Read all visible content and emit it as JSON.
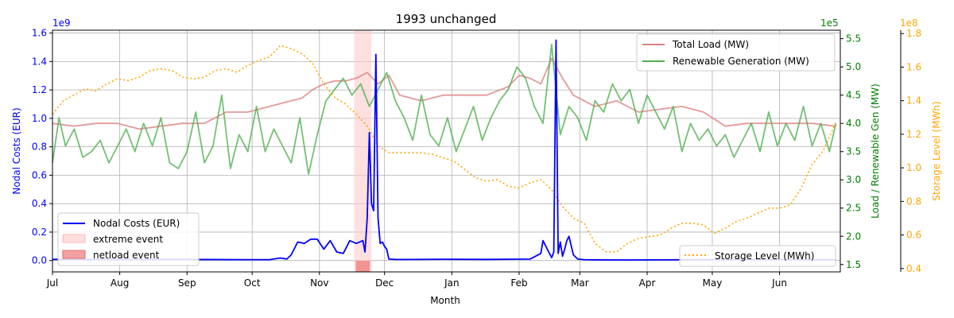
{
  "chart_data": {
    "type": "line",
    "title": "1993 unchanged",
    "xlabel": "Month",
    "x_ticks": [
      "Jul",
      "Aug",
      "Sep",
      "Oct",
      "Nov",
      "Dec",
      "Jan",
      "Feb",
      "Mar",
      "Apr",
      "May",
      "Jun"
    ],
    "grid": true,
    "axes": {
      "left": {
        "label": "Nodal Costs (EUR)",
        "multiplier": "1e9",
        "ylim": [
          -0.08,
          1.62
        ],
        "ticks": [
          "0.0",
          "0.2",
          "0.4",
          "0.6",
          "0.8",
          "1.0",
          "1.2",
          "1.4",
          "1.6"
        ],
        "color": "#0000ff"
      },
      "right1": {
        "label": "Load / Renewable Gen (MW)",
        "multiplier": "1e5",
        "ylim": [
          1.37,
          5.65
        ],
        "ticks": [
          "1.5",
          "2.0",
          "2.5",
          "3.0",
          "3.5",
          "4.0",
          "4.5",
          "5.0",
          "5.5"
        ],
        "color": "#008000"
      },
      "right2": {
        "label": "Storage Level (MWh)",
        "multiplier": "1e8",
        "ylim": [
          0.38,
          1.82
        ],
        "ticks": [
          "0.4",
          "0.6",
          "0.8",
          "1.0",
          "1.2",
          "1.4",
          "1.6",
          "1.8"
        ],
        "color": "#ffa500"
      }
    },
    "legends": {
      "top_right": [
        "Total Load (MW)",
        "Renewable Generation (MW)"
      ],
      "bottom_left": [
        "Nodal Costs (EUR)",
        "extreme event",
        "netload event"
      ],
      "bottom_right": [
        "Storage Level (MWh)"
      ]
    },
    "series": [
      {
        "name": "Nodal Costs (EUR)",
        "axis": "left",
        "color": "#0000ff",
        "style": "solid",
        "x": [
          0,
          30,
          60,
          90,
          100,
          105,
          108,
          110,
          113,
          116,
          119,
          122,
          125,
          128,
          131,
          134,
          137,
          140,
          143,
          144,
          145,
          146,
          147,
          148,
          149,
          150,
          151,
          152,
          153,
          154,
          155,
          158,
          165,
          180,
          200,
          220,
          225,
          226,
          228,
          230,
          231,
          232,
          233,
          234,
          235,
          236,
          237,
          238,
          240,
          242,
          245,
          250,
          265,
          300,
          345,
          361
        ],
        "y": [
          0.008,
          0.007,
          0.007,
          0.006,
          0.006,
          0.018,
          0.01,
          0.04,
          0.13,
          0.12,
          0.15,
          0.15,
          0.08,
          0.14,
          0.06,
          0.05,
          0.14,
          0.12,
          0.14,
          0.06,
          0.3,
          0.9,
          0.4,
          0.35,
          1.45,
          0.3,
          0.12,
          0.13,
          0.1,
          0.08,
          0.01,
          0.007,
          0.007,
          0.009,
          0.008,
          0.01,
          0.05,
          0.14,
          0.08,
          0.02,
          0.06,
          1.55,
          0.05,
          0.13,
          0.03,
          0.08,
          0.14,
          0.17,
          0.04,
          0.01,
          0.006,
          0.005,
          0.004,
          0.006,
          0.006,
          0.006
        ]
      },
      {
        "name": "Storage Level (MWh)",
        "axis": "right2",
        "color": "#ffa500",
        "style": "dotted",
        "x": [
          0,
          5,
          15,
          20,
          25,
          30,
          35,
          40,
          45,
          50,
          55,
          60,
          65,
          70,
          75,
          80,
          85,
          90,
          95,
          100,
          105,
          110,
          115,
          120,
          125,
          130,
          135,
          140,
          145,
          150,
          155,
          160,
          165,
          170,
          175,
          180,
          185,
          190,
          195,
          200,
          205,
          210,
          215,
          220,
          225,
          230,
          235,
          240,
          245,
          250,
          255,
          260,
          265,
          270,
          275,
          280,
          285,
          290,
          295,
          300,
          305,
          310,
          315,
          320,
          325,
          330,
          335,
          340,
          345,
          350,
          355,
          361
        ],
        "y": [
          1.32,
          1.4,
          1.47,
          1.46,
          1.5,
          1.53,
          1.52,
          1.54,
          1.58,
          1.59,
          1.58,
          1.54,
          1.53,
          1.54,
          1.58,
          1.59,
          1.57,
          1.61,
          1.64,
          1.66,
          1.73,
          1.71,
          1.68,
          1.62,
          1.5,
          1.42,
          1.38,
          1.32,
          1.25,
          1.13,
          1.09,
          1.09,
          1.09,
          1.09,
          1.08,
          1.06,
          1.04,
          0.99,
          0.94,
          0.92,
          0.93,
          0.89,
          0.88,
          0.91,
          0.93,
          0.87,
          0.77,
          0.7,
          0.67,
          0.55,
          0.5,
          0.5,
          0.55,
          0.58,
          0.59,
          0.6,
          0.64,
          0.67,
          0.67,
          0.66,
          0.61,
          0.64,
          0.68,
          0.7,
          0.73,
          0.76,
          0.76,
          0.78,
          0.88,
          1.02,
          1.1,
          1.27
        ]
      },
      {
        "name": "Total Load (MW)",
        "axis": "right1",
        "color": "#e08080",
        "style": "solid",
        "x": [
          0,
          10,
          20,
          30,
          40,
          50,
          60,
          70,
          80,
          90,
          100,
          110,
          115,
          120,
          125,
          130,
          135,
          140,
          145,
          150,
          155,
          160,
          170,
          180,
          190,
          200,
          210,
          215,
          220,
          225,
          230,
          235,
          240,
          250,
          260,
          270,
          280,
          290,
          300,
          310,
          320,
          330,
          340,
          350,
          361
        ],
        "y": [
          4.0,
          3.95,
          4.0,
          4.0,
          3.9,
          3.95,
          4.0,
          4.0,
          4.2,
          4.2,
          4.3,
          4.4,
          4.45,
          4.6,
          4.7,
          4.75,
          4.75,
          4.8,
          4.9,
          4.7,
          4.85,
          4.5,
          4.4,
          4.5,
          4.5,
          4.5,
          4.65,
          4.85,
          4.8,
          4.7,
          5.15,
          4.8,
          4.5,
          4.3,
          4.4,
          4.2,
          4.25,
          4.3,
          4.2,
          3.95,
          4.0,
          4.0,
          4.0,
          4.0,
          3.95
        ]
      },
      {
        "name": "Renewable Generation (MW)",
        "axis": "right1",
        "color": "#50b050",
        "style": "solid",
        "x": [
          0,
          3,
          6,
          10,
          14,
          18,
          22,
          26,
          30,
          34,
          38,
          42,
          46,
          50,
          54,
          58,
          62,
          66,
          70,
          74,
          78,
          82,
          86,
          90,
          94,
          98,
          102,
          106,
          110,
          114,
          118,
          122,
          126,
          130,
          134,
          138,
          142,
          146,
          150,
          154,
          158,
          162,
          166,
          170,
          174,
          178,
          182,
          186,
          190,
          194,
          198,
          202,
          206,
          210,
          214,
          218,
          222,
          226,
          230,
          234,
          238,
          242,
          246,
          250,
          254,
          258,
          262,
          266,
          270,
          274,
          278,
          282,
          286,
          290,
          294,
          298,
          302,
          306,
          310,
          314,
          318,
          322,
          326,
          330,
          334,
          338,
          342,
          346,
          350,
          354,
          358,
          361
        ],
        "y": [
          3.3,
          4.1,
          3.6,
          3.9,
          3.4,
          3.5,
          3.7,
          3.3,
          3.6,
          3.9,
          3.5,
          4.0,
          3.6,
          4.1,
          3.3,
          3.2,
          3.5,
          4.2,
          3.3,
          3.6,
          4.5,
          3.2,
          3.8,
          3.5,
          4.3,
          3.5,
          3.9,
          3.6,
          3.3,
          4.1,
          3.1,
          3.8,
          4.4,
          4.6,
          4.8,
          4.5,
          4.7,
          4.3,
          4.6,
          4.9,
          4.4,
          4.1,
          3.7,
          4.5,
          3.8,
          3.6,
          4.1,
          3.5,
          3.9,
          4.3,
          3.7,
          4.1,
          4.4,
          4.6,
          5.0,
          4.8,
          4.3,
          4.0,
          5.4,
          3.8,
          4.3,
          4.1,
          3.7,
          4.4,
          4.2,
          4.7,
          4.4,
          4.6,
          4.0,
          4.5,
          4.2,
          3.9,
          4.3,
          3.5,
          4.0,
          3.7,
          3.9,
          3.6,
          3.8,
          3.4,
          3.7,
          4.0,
          3.5,
          4.2,
          3.6,
          4.0,
          3.7,
          4.3,
          3.6,
          4.0,
          3.5,
          4.0
        ]
      }
    ],
    "shaded_regions": [
      {
        "name": "extreme event",
        "x_start": 139,
        "x_end": 147,
        "color": "#ffcccc"
      },
      {
        "name": "netload event",
        "x_start": 139,
        "x_end": 147,
        "color": "#f08080"
      }
    ]
  }
}
